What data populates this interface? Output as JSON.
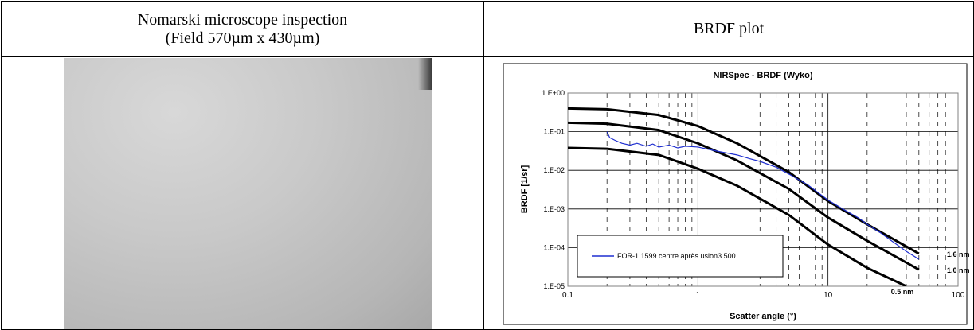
{
  "table": {
    "left_header": [
      "Nomarski microscope inspection",
      "(Field 570µm x 430µm)"
    ],
    "right_header": "BRDF plot"
  },
  "chart_data": {
    "type": "line",
    "title": "NIRSpec  -  BRDF (Wyko)",
    "x_label": "Scatter angle (°)",
    "y_label": "BRDF [1/sr]",
    "xscale": "log",
    "yscale": "log",
    "grid": true,
    "xlim": [
      0.1,
      100
    ],
    "xticks": [
      0.1,
      1,
      10,
      100
    ],
    "ylim": [
      1e-05,
      1
    ],
    "yticks": [
      {
        "value": 1,
        "label": "1.E+00"
      },
      {
        "value": 0.1,
        "label": "1.E-01"
      },
      {
        "value": 0.01,
        "label": "1.E-02"
      },
      {
        "value": 0.001,
        "label": "1.E-03"
      },
      {
        "value": 0.0001,
        "label": "1.E-04"
      },
      {
        "value": 1e-05,
        "label": "1.E-05"
      }
    ],
    "series": [
      {
        "name": "FOR-1 1599 centre après usion3 500",
        "color": "#1f2fd0",
        "x": [
          0.2,
          0.21,
          0.23,
          0.26,
          0.3,
          0.34,
          0.4,
          0.45,
          0.5,
          0.6,
          0.7,
          0.8,
          1,
          1.2,
          1.5,
          2,
          2.5,
          3,
          4,
          5,
          7,
          10,
          13,
          17,
          20,
          25,
          30,
          40,
          50
        ],
        "values": [
          0.1,
          0.07,
          0.06,
          0.05,
          0.045,
          0.05,
          0.042,
          0.048,
          0.04,
          0.045,
          0.038,
          0.042,
          0.04,
          0.035,
          0.03,
          0.025,
          0.02,
          0.017,
          0.012,
          0.008,
          0.0042,
          0.0017,
          0.001,
          0.0006,
          0.0004,
          0.00025,
          0.00016,
          8e-05,
          5e-05
        ]
      }
    ],
    "curves": [
      {
        "name": "1.6 nm",
        "color": "#000000",
        "x": [
          0.1,
          0.2,
          0.5,
          1,
          2,
          5,
          10,
          20,
          50
        ],
        "values": [
          0.4,
          0.38,
          0.27,
          0.14,
          0.05,
          0.009,
          0.0016,
          0.0004,
          7e-05
        ]
      },
      {
        "name": "1.0 nm",
        "color": "#000000",
        "x": [
          0.1,
          0.2,
          0.5,
          1,
          2,
          5,
          10,
          20,
          50
        ],
        "values": [
          0.17,
          0.16,
          0.11,
          0.05,
          0.018,
          0.0033,
          0.0006,
          0.00015,
          2.7e-05
        ]
      },
      {
        "name": "0.5 nm",
        "color": "#000000",
        "x": [
          0.1,
          0.2,
          0.5,
          1,
          2,
          5,
          10,
          20,
          40
        ],
        "values": [
          0.038,
          0.036,
          0.025,
          0.011,
          0.004,
          0.0007,
          0.00012,
          3e-05,
          1e-05
        ]
      }
    ],
    "legend": "lower left"
  }
}
